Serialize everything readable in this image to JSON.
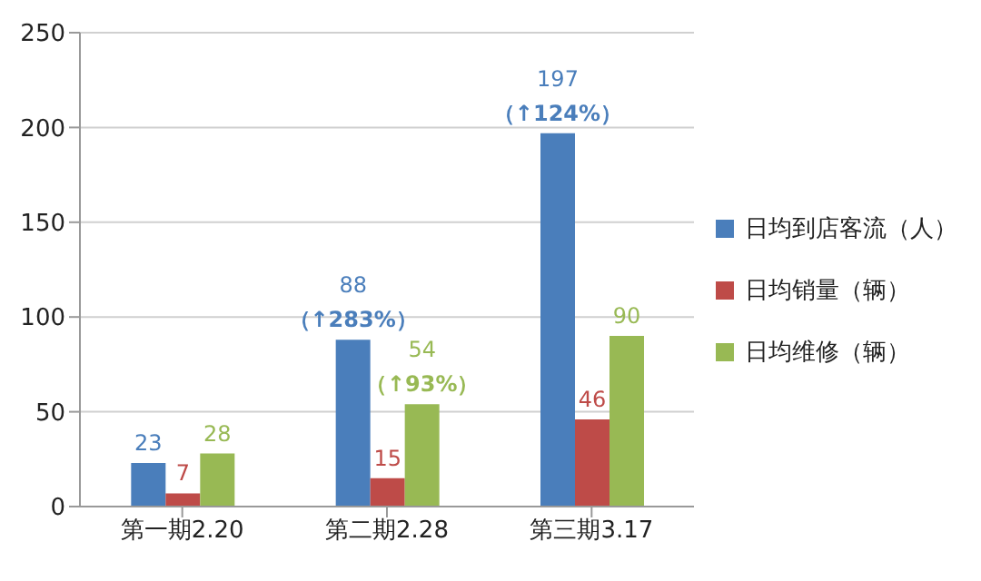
{
  "chart_data": {
    "type": "bar",
    "categories": [
      "第一期2.20",
      "第二期2.28",
      "第三期3.17"
    ],
    "series": [
      {
        "name": "日均到店客流（人）",
        "color": "#4a7ebb",
        "values": [
          23,
          88,
          197
        ],
        "value_labels": [
          "23",
          "88\n（↑283%）",
          "197\n（↑124%）"
        ]
      },
      {
        "name": "日均销量（辆）",
        "color": "#be4b48",
        "values": [
          7,
          15,
          46
        ],
        "value_labels": [
          "7",
          "15",
          "46"
        ]
      },
      {
        "name": "日均维修（辆）",
        "color": "#98b954",
        "values": [
          28,
          54,
          90
        ],
        "value_labels": [
          "28",
          "54\n（↑93%）",
          "90"
        ]
      }
    ],
    "ylim": [
      0,
      250
    ],
    "yticks": [
      0,
      50,
      100,
      150,
      200,
      250
    ],
    "grid": "y",
    "legend": "right"
  }
}
